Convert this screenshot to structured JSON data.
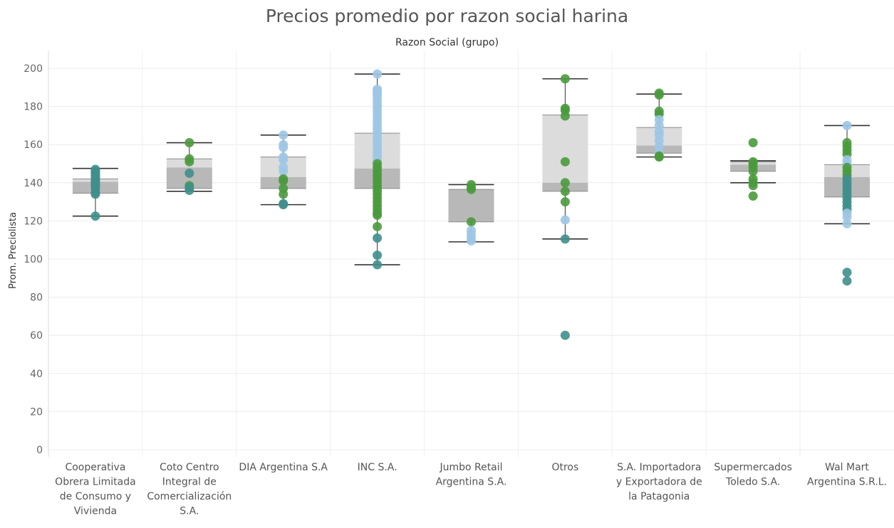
{
  "chart_data": {
    "type": "boxplot",
    "title": "Precios promedio por razon social harina",
    "header": "Razon Social (grupo)",
    "ylabel": "Prom. Preciolista",
    "ylim": [
      0,
      200
    ],
    "yticks": [
      0,
      20,
      40,
      60,
      80,
      100,
      120,
      140,
      160,
      180,
      200
    ],
    "grid": true,
    "colors": {
      "blue": "#9dc7e6",
      "green": "#4a9a3d",
      "teal": "#3f8f8c",
      "box_upper": "#dcdcdc",
      "box_lower": "#b8b8b8",
      "whisker": "#333333"
    },
    "categories": [
      {
        "label_lines": [
          "Cooperativa",
          "Obrera Limitada",
          "de Consumo y",
          "Vivienda"
        ],
        "box": {
          "whisker_low": 122.5,
          "q1": 134.5,
          "median": 140.5,
          "q3": 142,
          "whisker_high": 147.5
        },
        "points": [
          {
            "y": 147,
            "c": "teal"
          },
          {
            "y": 146,
            "c": "teal"
          },
          {
            "y": 145,
            "c": "teal"
          },
          {
            "y": 144,
            "c": "teal"
          },
          {
            "y": 143,
            "c": "teal"
          },
          {
            "y": 142,
            "c": "teal"
          },
          {
            "y": 141,
            "c": "teal"
          },
          {
            "y": 140,
            "c": "teal"
          },
          {
            "y": 139,
            "c": "teal"
          },
          {
            "y": 138,
            "c": "teal"
          },
          {
            "y": 137,
            "c": "teal"
          },
          {
            "y": 135,
            "c": "teal"
          },
          {
            "y": 134,
            "c": "teal"
          },
          {
            "y": 122.5,
            "c": "teal"
          }
        ]
      },
      {
        "label_lines": [
          "Coto Centro",
          "Integral de",
          "Comercialización",
          "S.A."
        ],
        "box": {
          "whisker_low": 135.5,
          "q1": 137,
          "median": 148,
          "q3": 152.5,
          "whisker_high": 161
        },
        "points": [
          {
            "y": 161,
            "c": "green"
          },
          {
            "y": 152.5,
            "c": "green"
          },
          {
            "y": 151,
            "c": "green"
          },
          {
            "y": 145,
            "c": "teal"
          },
          {
            "y": 138.5,
            "c": "green"
          },
          {
            "y": 137.5,
            "c": "teal"
          },
          {
            "y": 136,
            "c": "teal"
          }
        ]
      },
      {
        "label_lines": [
          "DIA Argentina S.A"
        ],
        "box": {
          "whisker_low": 128.5,
          "q1": 137,
          "median": 143,
          "q3": 153.5,
          "whisker_high": 165
        },
        "points": [
          {
            "y": 165,
            "c": "blue"
          },
          {
            "y": 160,
            "c": "blue"
          },
          {
            "y": 158.5,
            "c": "blue"
          },
          {
            "y": 153.5,
            "c": "blue"
          },
          {
            "y": 152,
            "c": "blue"
          },
          {
            "y": 148,
            "c": "blue"
          },
          {
            "y": 146,
            "c": "blue"
          },
          {
            "y": 142,
            "c": "green"
          },
          {
            "y": 141,
            "c": "green"
          },
          {
            "y": 137,
            "c": "green"
          },
          {
            "y": 134,
            "c": "green"
          },
          {
            "y": 129,
            "c": "teal"
          },
          {
            "y": 128.5,
            "c": "teal"
          }
        ]
      },
      {
        "label_lines": [
          "INC S.A."
        ],
        "box": {
          "whisker_low": 97,
          "q1": 137,
          "median": 147.5,
          "q3": 166,
          "whisker_high": 197
        },
        "points": [
          {
            "y": 197,
            "c": "blue"
          },
          {
            "y": 189,
            "c": "blue"
          },
          {
            "y": 188,
            "c": "blue"
          },
          {
            "y": 187,
            "c": "blue"
          },
          {
            "y": 186,
            "c": "blue"
          },
          {
            "y": 184,
            "c": "blue"
          },
          {
            "y": 182,
            "c": "blue"
          },
          {
            "y": 180,
            "c": "blue"
          },
          {
            "y": 178,
            "c": "blue"
          },
          {
            "y": 176,
            "c": "blue"
          },
          {
            "y": 174,
            "c": "blue"
          },
          {
            "y": 172,
            "c": "blue"
          },
          {
            "y": 170,
            "c": "blue"
          },
          {
            "y": 168,
            "c": "blue"
          },
          {
            "y": 166,
            "c": "blue"
          },
          {
            "y": 164,
            "c": "blue"
          },
          {
            "y": 162,
            "c": "blue"
          },
          {
            "y": 160,
            "c": "blue"
          },
          {
            "y": 158,
            "c": "blue"
          },
          {
            "y": 156,
            "c": "blue"
          },
          {
            "y": 154,
            "c": "blue"
          },
          {
            "y": 152,
            "c": "blue"
          },
          {
            "y": 150,
            "c": "green"
          },
          {
            "y": 148,
            "c": "green"
          },
          {
            "y": 146,
            "c": "green"
          },
          {
            "y": 144,
            "c": "green"
          },
          {
            "y": 142,
            "c": "green"
          },
          {
            "y": 140,
            "c": "green"
          },
          {
            "y": 138,
            "c": "green"
          },
          {
            "y": 136,
            "c": "green"
          },
          {
            "y": 134,
            "c": "green"
          },
          {
            "y": 132,
            "c": "green"
          },
          {
            "y": 130,
            "c": "green"
          },
          {
            "y": 128,
            "c": "green"
          },
          {
            "y": 126,
            "c": "green"
          },
          {
            "y": 124,
            "c": "green"
          },
          {
            "y": 123,
            "c": "green"
          },
          {
            "y": 117,
            "c": "green"
          },
          {
            "y": 111,
            "c": "teal"
          },
          {
            "y": 102,
            "c": "teal"
          },
          {
            "y": 97,
            "c": "teal"
          }
        ]
      },
      {
        "label_lines": [
          "Jumbo Retail",
          "Argentina S.A."
        ],
        "box": {
          "whisker_low": 109,
          "q1": 119.5,
          "median": 136.5,
          "q3": 136.5,
          "whisker_high": 139
        },
        "points": [
          {
            "y": 139,
            "c": "green"
          },
          {
            "y": 137.5,
            "c": "green"
          },
          {
            "y": 136.5,
            "c": "green"
          },
          {
            "y": 119.5,
            "c": "green"
          },
          {
            "y": 115,
            "c": "blue"
          },
          {
            "y": 113,
            "c": "blue"
          },
          {
            "y": 111,
            "c": "blue"
          },
          {
            "y": 109.5,
            "c": "blue"
          }
        ]
      },
      {
        "label_lines": [
          "Otros"
        ],
        "box": {
          "whisker_low": 110.5,
          "q1": 135.5,
          "median": 140,
          "q3": 175.5,
          "whisker_high": 194.5
        },
        "points": [
          {
            "y": 194.5,
            "c": "green"
          },
          {
            "y": 179,
            "c": "green"
          },
          {
            "y": 178,
            "c": "green"
          },
          {
            "y": 175,
            "c": "green"
          },
          {
            "y": 151,
            "c": "green"
          },
          {
            "y": 140,
            "c": "green"
          },
          {
            "y": 135.5,
            "c": "green"
          },
          {
            "y": 130,
            "c": "green"
          },
          {
            "y": 120.5,
            "c": "blue"
          },
          {
            "y": 110.5,
            "c": "teal"
          },
          {
            "y": 60,
            "c": "teal"
          }
        ]
      },
      {
        "label_lines": [
          "S.A. Importadora",
          "y Exportadora de",
          "la Patagonia"
        ],
        "box": {
          "whisker_low": 153.5,
          "q1": 155.5,
          "median": 159.5,
          "q3": 169,
          "whisker_high": 186.5
        },
        "points": [
          {
            "y": 187,
            "c": "green"
          },
          {
            "y": 186,
            "c": "green"
          },
          {
            "y": 177.5,
            "c": "green"
          },
          {
            "y": 176,
            "c": "green"
          },
          {
            "y": 173,
            "c": "blue"
          },
          {
            "y": 170,
            "c": "blue"
          },
          {
            "y": 167,
            "c": "blue"
          },
          {
            "y": 165,
            "c": "blue"
          },
          {
            "y": 162,
            "c": "blue"
          },
          {
            "y": 159,
            "c": "blue"
          },
          {
            "y": 156,
            "c": "blue"
          },
          {
            "y": 154,
            "c": "green"
          },
          {
            "y": 153.5,
            "c": "green"
          }
        ]
      },
      {
        "label_lines": [
          "Supermercados",
          "Toledo S.A."
        ],
        "box": {
          "whisker_low": 140,
          "q1": 146,
          "median": 149.5,
          "q3": 151,
          "whisker_high": 151.5
        },
        "points": [
          {
            "y": 161,
            "c": "green"
          },
          {
            "y": 151,
            "c": "green"
          },
          {
            "y": 150,
            "c": "green"
          },
          {
            "y": 148,
            "c": "green"
          },
          {
            "y": 146,
            "c": "green"
          },
          {
            "y": 142,
            "c": "green"
          },
          {
            "y": 140,
            "c": "green"
          },
          {
            "y": 138.5,
            "c": "green"
          },
          {
            "y": 133,
            "c": "green"
          }
        ]
      },
      {
        "label_lines": [
          "Wal Mart",
          "Argentina S.R.L."
        ],
        "box": {
          "whisker_low": 118.5,
          "q1": 132.5,
          "median": 143,
          "q3": 149.5,
          "whisker_high": 170
        },
        "points": [
          {
            "y": 170,
            "c": "blue"
          },
          {
            "y": 161,
            "c": "green"
          },
          {
            "y": 159,
            "c": "green"
          },
          {
            "y": 157,
            "c": "green"
          },
          {
            "y": 155,
            "c": "green"
          },
          {
            "y": 152,
            "c": "blue"
          },
          {
            "y": 150,
            "c": "blue"
          },
          {
            "y": 148,
            "c": "green"
          },
          {
            "y": 146,
            "c": "green"
          },
          {
            "y": 144,
            "c": "green"
          },
          {
            "y": 142,
            "c": "teal"
          },
          {
            "y": 140,
            "c": "teal"
          },
          {
            "y": 138,
            "c": "teal"
          },
          {
            "y": 136,
            "c": "teal"
          },
          {
            "y": 134,
            "c": "teal"
          },
          {
            "y": 132,
            "c": "teal"
          },
          {
            "y": 130,
            "c": "teal"
          },
          {
            "y": 128,
            "c": "teal"
          },
          {
            "y": 126,
            "c": "teal"
          },
          {
            "y": 124,
            "c": "blue"
          },
          {
            "y": 122,
            "c": "blue"
          },
          {
            "y": 118.5,
            "c": "blue"
          },
          {
            "y": 93,
            "c": "teal"
          },
          {
            "y": 88.5,
            "c": "teal"
          }
        ]
      }
    ]
  }
}
